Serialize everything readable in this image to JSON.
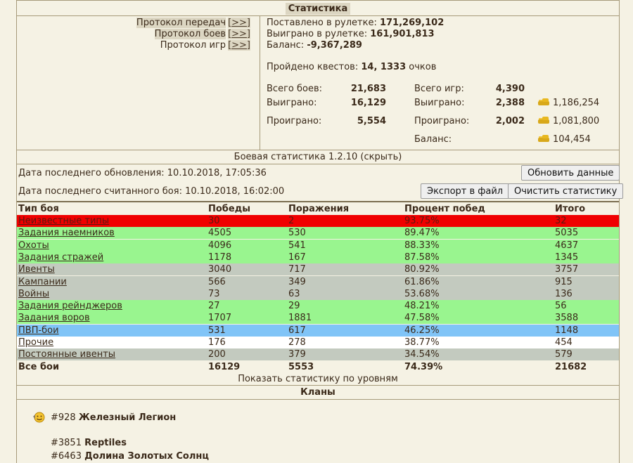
{
  "stats": {
    "title": "Статистика",
    "protocols": [
      {
        "label": "Протокол передач",
        "link": "[>>]"
      },
      {
        "label": "Протокол боев",
        "link": "[>>]"
      },
      {
        "label": "Протокол игр",
        "link": "[>>]"
      }
    ],
    "roulette": {
      "bet_label": "Поставлено в рулетке:",
      "bet_value": "171,269,102",
      "won_label": "Выиграно в рулетке:",
      "won_value": "161,901,813",
      "balance_label": "Баланс:",
      "balance_value": "-9,367,289"
    },
    "quests": {
      "label": "Пройдено квестов:",
      "value": "14, 1333",
      "unit": "очков"
    },
    "battles": {
      "total_label": "Всего боев:",
      "total": "21,683",
      "won_label": "Выиграно:",
      "won": "16,129",
      "lost_label": "Проиграно:",
      "lost": "5,554"
    },
    "games": {
      "total_label": "Всего игр:",
      "total": "4,390",
      "won_label": "Выиграно:",
      "won": "2,388",
      "won_gold": "1,186,254",
      "lost_label": "Проиграно:",
      "lost": "2,002",
      "lost_gold": "1,081,800",
      "balance_label": "Баланс:",
      "balance_gold": "104,454"
    }
  },
  "battle_stats": {
    "title": "Боевая статистика 1.2.10 (скрыть)",
    "last_update": "Дата последнего обновления: 10.10.2018, 17:05:36",
    "last_battle": "Дата последнего считанного боя: 10.10.2018, 16:02:00",
    "refresh_button": "Обновить данные",
    "export_button": "Экспорт в файл",
    "clear_button": "Очистить статистику",
    "columns": [
      "Тип боя",
      "Победы",
      "Поражения",
      "Процент побед",
      "Итого"
    ],
    "rows": [
      {
        "type": "Неизвестные типы",
        "wins": "30",
        "losses": "2",
        "pct": "93.75%",
        "total": "32",
        "color": "red"
      },
      {
        "type": "Задания наемников",
        "wins": "4505",
        "losses": "530",
        "pct": "89.47%",
        "total": "5035",
        "color": "green"
      },
      {
        "type": "Охоты",
        "wins": "4096",
        "losses": "541",
        "pct": "88.33%",
        "total": "4637",
        "color": "green"
      },
      {
        "type": "Задания стражей",
        "wins": "1178",
        "losses": "167",
        "pct": "87.58%",
        "total": "1345",
        "color": "green"
      },
      {
        "type": "Ивенты",
        "wins": "3040",
        "losses": "717",
        "pct": "80.92%",
        "total": "3757",
        "color": "grey"
      },
      {
        "type": "Кампании",
        "wins": "566",
        "losses": "349",
        "pct": "61.86%",
        "total": "915",
        "color": "grey"
      },
      {
        "type": "Войны",
        "wins": "73",
        "losses": "63",
        "pct": "53.68%",
        "total": "136",
        "color": "grey"
      },
      {
        "type": "Задания рейнджеров",
        "wins": "27",
        "losses": "29",
        "pct": "48.21%",
        "total": "56",
        "color": "green"
      },
      {
        "type": "Задания воров",
        "wins": "1707",
        "losses": "1881",
        "pct": "47.58%",
        "total": "3588",
        "color": "green"
      },
      {
        "type": "ПВП-бои",
        "wins": "531",
        "losses": "617",
        "pct": "46.25%",
        "total": "1148",
        "color": "blue"
      },
      {
        "type": "Прочие",
        "wins": "176",
        "losses": "278",
        "pct": "38.77%",
        "total": "454",
        "color": "white"
      },
      {
        "type": "Постоянные ивенты",
        "wins": "200",
        "losses": "379",
        "pct": "34.54%",
        "total": "579",
        "color": "grey"
      }
    ],
    "total_row": {
      "type": "Все бои",
      "wins": "16129",
      "losses": "5553",
      "pct": "74.39%",
      "total": "21682"
    },
    "levels_link": "Показать статистику по уровням"
  },
  "clans": {
    "title": "Кланы",
    "list": [
      {
        "id": "#928",
        "name": "Железный Легион"
      },
      {
        "id": "#3851",
        "name": "Reptiles"
      },
      {
        "id": "#6463",
        "name": "Долина Золотых Солнц"
      }
    ]
  }
}
